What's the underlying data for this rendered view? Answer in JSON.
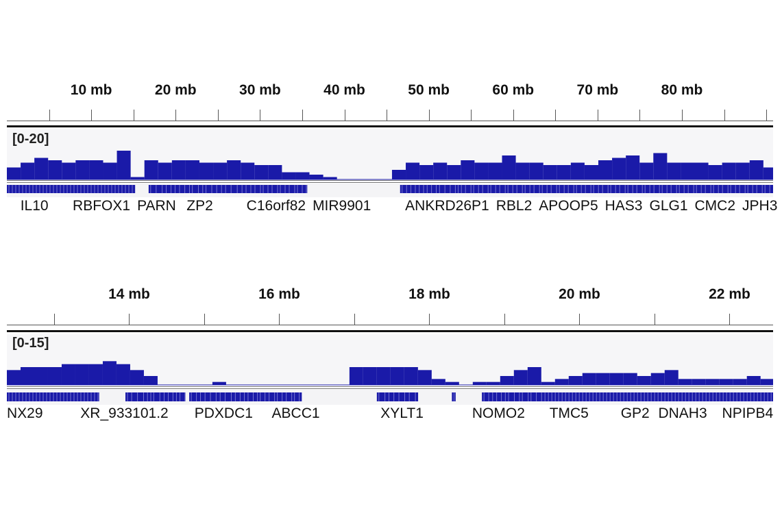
{
  "chart_data": [
    {
      "type": "bar",
      "xunit": "mb",
      "xlim": [
        0,
        90.8
      ],
      "tick_labels": [
        "10 mb",
        "20 mb",
        "30 mb",
        "40 mb",
        "50 mb",
        "60 mb",
        "70 mb",
        "80 mb"
      ],
      "tick_label_values": [
        10,
        20,
        30,
        40,
        50,
        60,
        70,
        80
      ],
      "minor_tick_step": 5,
      "data_range_label": "[0-20]",
      "ylim": [
        0,
        20
      ],
      "bar_color": "#1a1aa8",
      "coverage_bin_mb": 1.63,
      "coverage": [
        5,
        7,
        9,
        8,
        7,
        8,
        8,
        7,
        12,
        1,
        8,
        7,
        8,
        8,
        7,
        7,
        8,
        7,
        6,
        6,
        3,
        3,
        2,
        1,
        0,
        0,
        0,
        0,
        4,
        7,
        6,
        7,
        6,
        8,
        7,
        7,
        10,
        7,
        7,
        6,
        6,
        7,
        6,
        8,
        9,
        10,
        7,
        11,
        7,
        7,
        7,
        6,
        7,
        7,
        8,
        5
      ],
      "gene_features": [
        [
          0,
          15.2
        ],
        [
          16.8,
          35.6
        ],
        [
          46.6,
          90.8
        ]
      ],
      "gene_labels": [
        {
          "name": "IL10",
          "pos": 1.6
        },
        {
          "name": "RBFOX1",
          "pos": 7.8
        },
        {
          "name": "PARN",
          "pos": 14.5
        },
        {
          "name": "ZP2",
          "pos": 21.3
        },
        {
          "name": "C16orf82",
          "pos": 28.4
        },
        {
          "name": "MIR9901",
          "pos": 36.2
        },
        {
          "name": "ANKRD26P1",
          "pos": 47.2
        },
        {
          "name": "RBL2",
          "pos": 53.5
        },
        {
          "name": "APOOP5",
          "pos": 59.7
        },
        {
          "name": "HAS3",
          "pos": 69.3
        },
        {
          "name": "GLG1",
          "pos": 74.6
        },
        {
          "name": "CMC2",
          "pos": 81.1
        },
        {
          "name": "JPH3",
          "pos": 86
        }
      ]
    },
    {
      "type": "bar",
      "xunit": "mb",
      "xlim": [
        12.37,
        22.58
      ],
      "tick_labels": [
        "14 mb",
        "16 mb",
        "18 mb",
        "20 mb",
        "22 mb"
      ],
      "tick_label_values": [
        14,
        16,
        18,
        20,
        22
      ],
      "minor_tick_step": 1,
      "data_range_label": "[0-15]",
      "ylim": [
        0,
        15
      ],
      "bar_color": "#1a1aa8",
      "coverage_bin_mb": 0.1826,
      "coverage": [
        5,
        6,
        6,
        6,
        7,
        7,
        7,
        8,
        7,
        5,
        3,
        0,
        0,
        0,
        0,
        1,
        0,
        0,
        0,
        0,
        0,
        0,
        0,
        0,
        0,
        6,
        6,
        6,
        6,
        6,
        5,
        2,
        1,
        0,
        1,
        1,
        3,
        5,
        6,
        1,
        2,
        3,
        4,
        4,
        4,
        4,
        3,
        4,
        5,
        2,
        2,
        2,
        2,
        2,
        3,
        2
      ],
      "gene_features": [
        [
          12.37,
          13.6
        ],
        [
          13.95,
          14.75
        ],
        [
          14.8,
          16.3
        ],
        [
          17.3,
          17.85
        ],
        [
          18.3,
          18.35
        ],
        [
          18.7,
          22.58
        ]
      ],
      "gene_labels": [
        {
          "name": "NX29",
          "pos": 12.37
        },
        {
          "name": "XR_933101.2",
          "pos": 13.35
        },
        {
          "name": "PDXDC1",
          "pos": 14.87
        },
        {
          "name": "ABCC1",
          "pos": 15.9
        },
        {
          "name": "XYLT1",
          "pos": 17.35
        },
        {
          "name": "NOMO2",
          "pos": 18.57
        },
        {
          "name": "TMC5",
          "pos": 19.6
        },
        {
          "name": "GP2",
          "pos": 20.55
        },
        {
          "name": "DNAH3",
          "pos": 21.05
        },
        {
          "name": "NPIPB4",
          "pos": 21.9
        }
      ]
    }
  ]
}
